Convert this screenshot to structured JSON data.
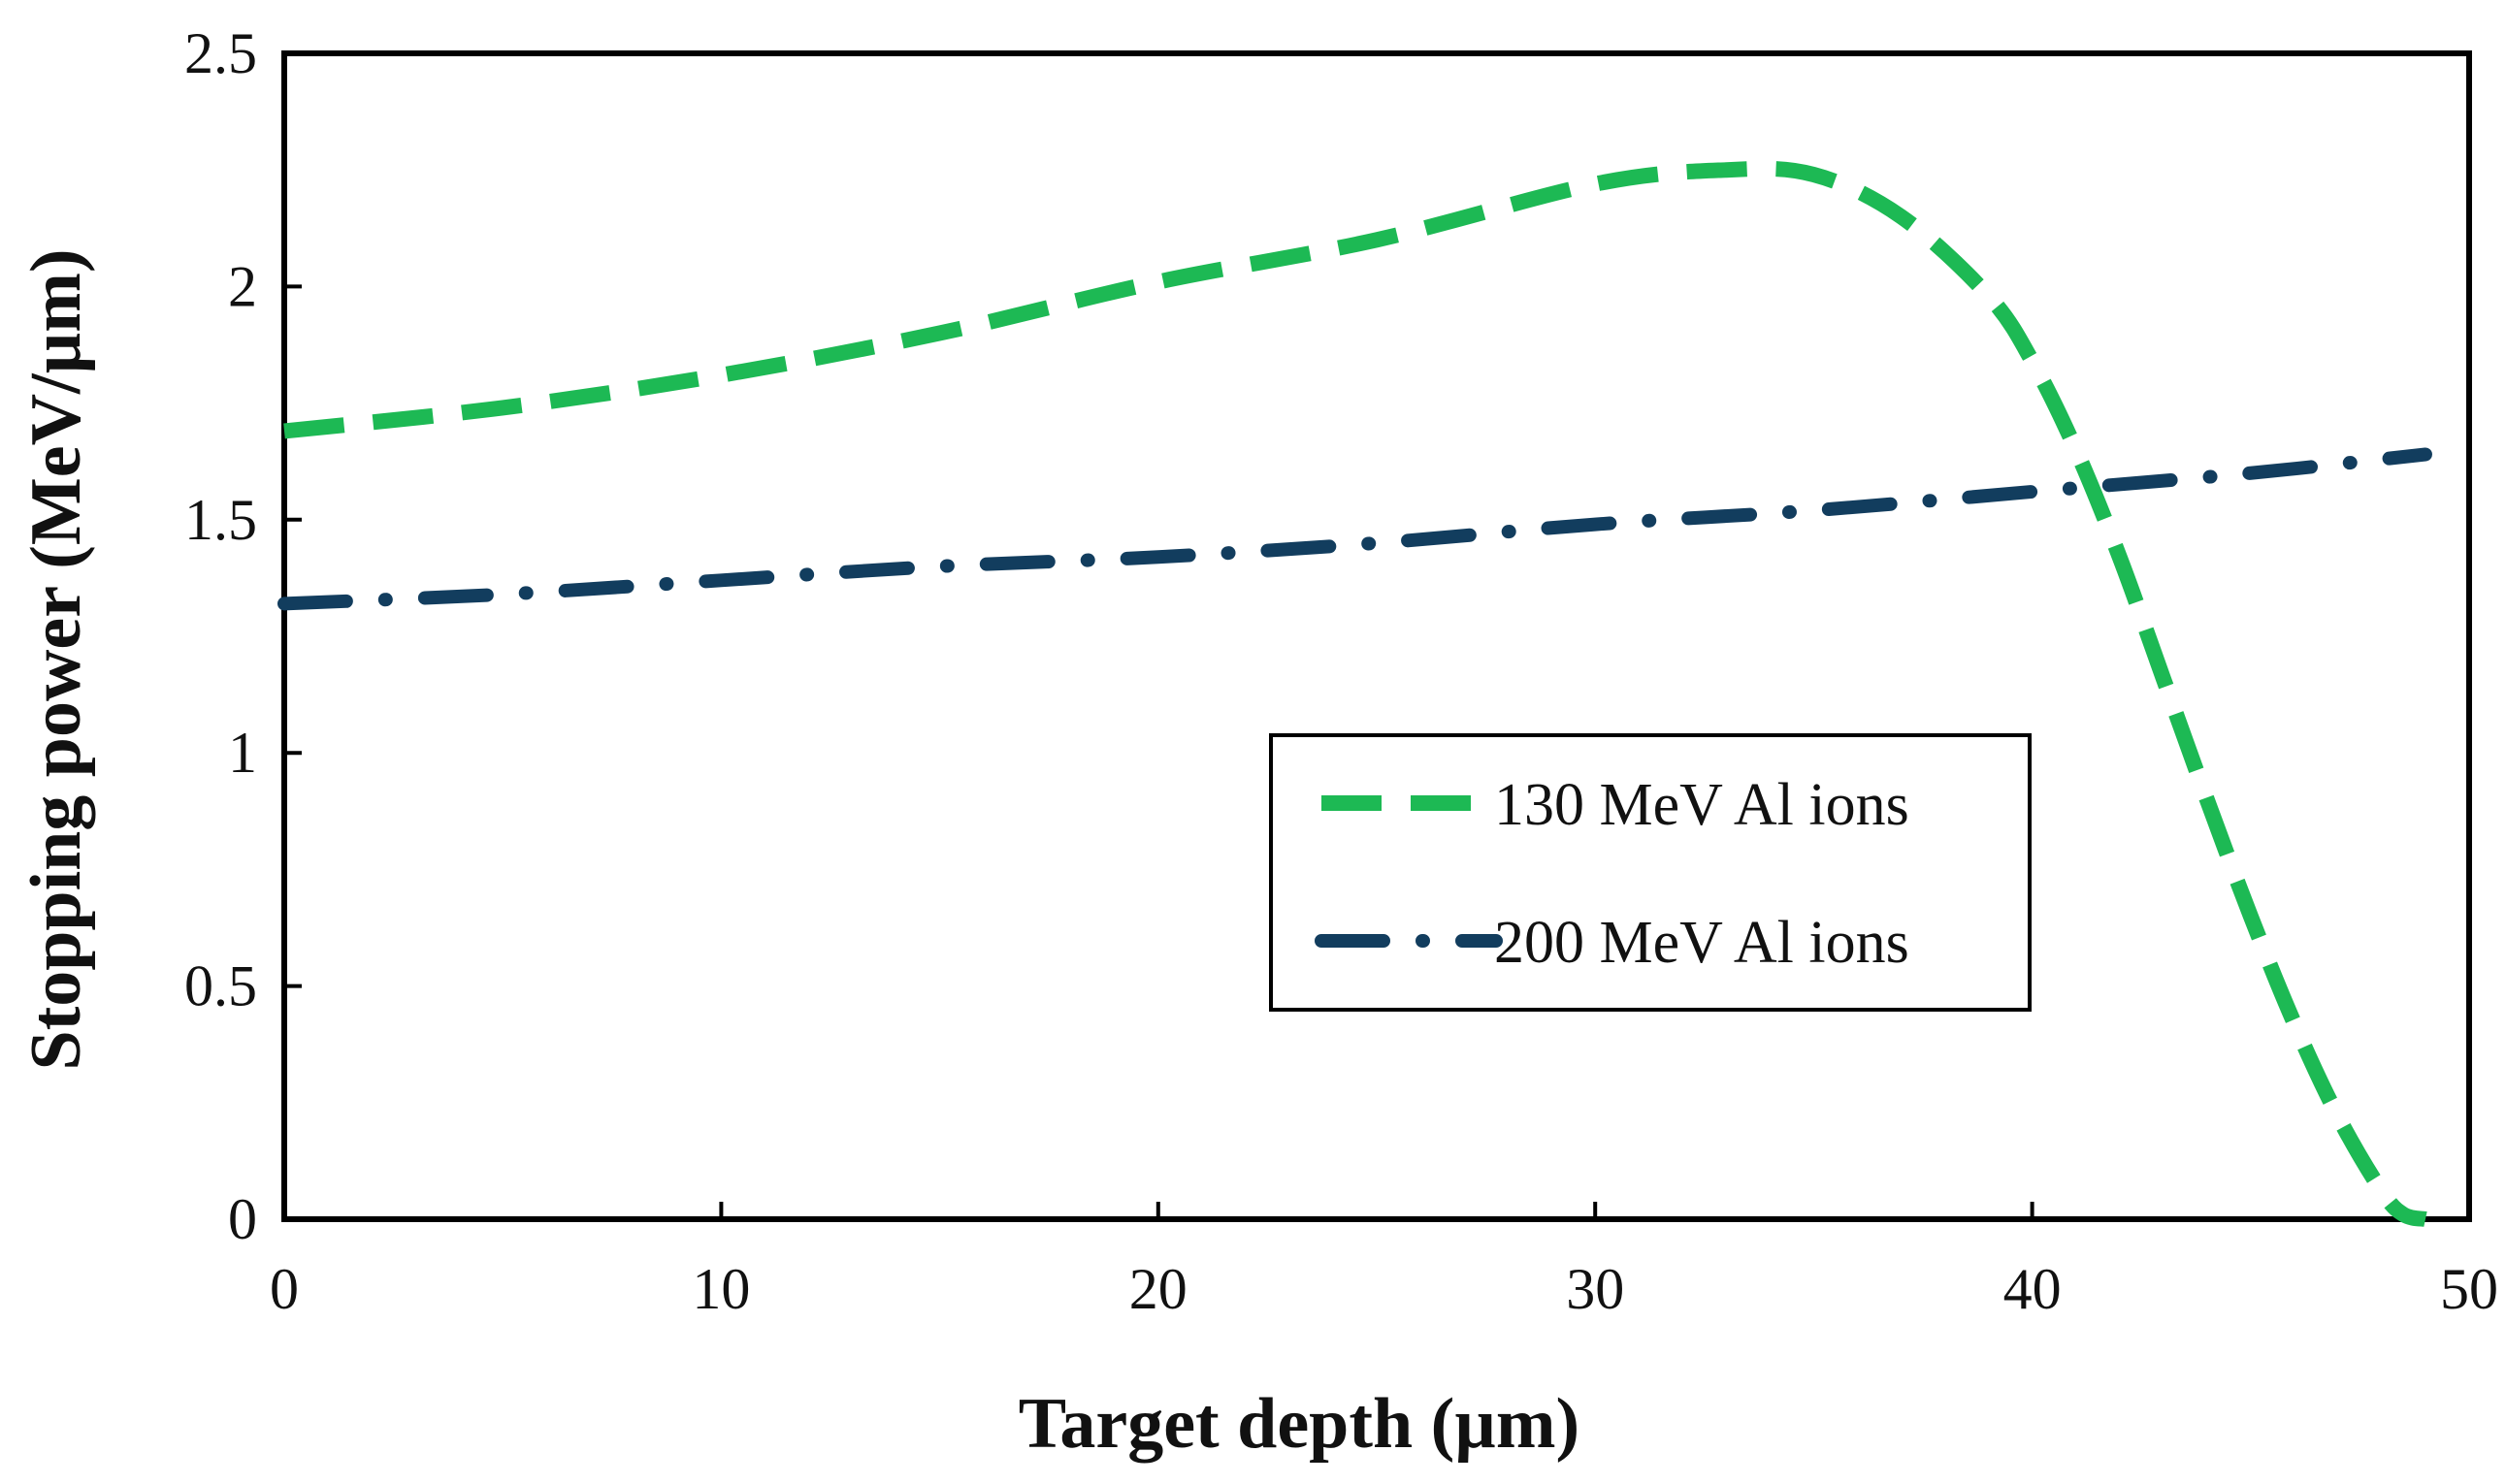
{
  "chart_data": {
    "type": "line",
    "title": "",
    "xlabel": "Target depth (µm)",
    "ylabel": "Stopping power (MeV/µm)",
    "xlim": [
      0,
      50
    ],
    "ylim": [
      0,
      2.5
    ],
    "x_ticks": [
      0,
      10,
      20,
      30,
      40,
      50
    ],
    "y_ticks": [
      0,
      0.5,
      1,
      1.5,
      2,
      2.5
    ],
    "x_tick_labels": [
      "0",
      "10",
      "20",
      "30",
      "40",
      "50"
    ],
    "y_tick_labels": [
      "0",
      "0.5",
      "1",
      "1.5",
      "2",
      "2.5"
    ],
    "grid": false,
    "legend": "inside-center-right",
    "series": [
      {
        "name": "130 MeV Al ions",
        "color": "#1db954",
        "style": "dashed",
        "x": [
          0,
          5,
          10,
          15,
          20,
          25,
          30,
          33,
          35,
          37,
          39,
          40,
          41,
          42,
          43,
          44,
          45,
          46,
          47,
          48,
          48.5,
          49
        ],
        "y": [
          1.69,
          1.74,
          1.81,
          1.9,
          2.01,
          2.1,
          2.22,
          2.25,
          2.24,
          2.15,
          1.98,
          1.84,
          1.65,
          1.42,
          1.16,
          0.9,
          0.65,
          0.42,
          0.22,
          0.06,
          0.01,
          0.0
        ]
      },
      {
        "name": "200 MeV Al ions",
        "color": "#123d5e",
        "style": "dashdot",
        "x": [
          0,
          5,
          10,
          15,
          20,
          25,
          30,
          35,
          40,
          45,
          49
        ],
        "y": [
          1.32,
          1.34,
          1.37,
          1.4,
          1.42,
          1.45,
          1.49,
          1.52,
          1.56,
          1.6,
          1.64
        ]
      }
    ]
  }
}
